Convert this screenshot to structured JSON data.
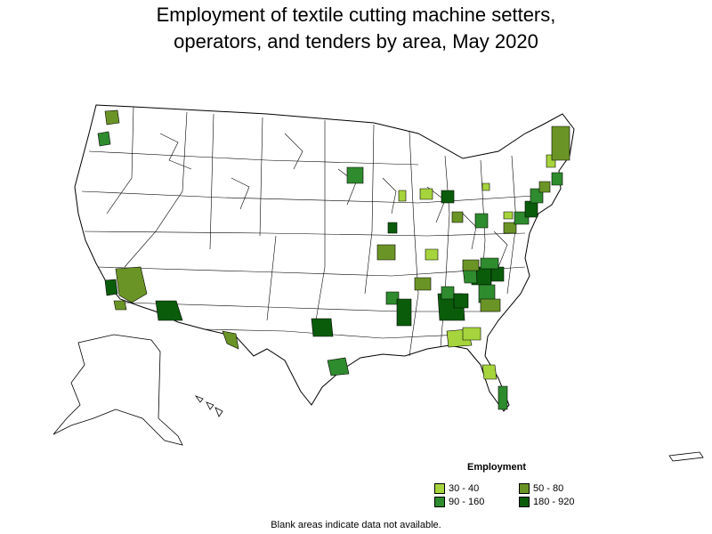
{
  "title": {
    "line1": "Employment of textile cutting machine setters,",
    "line2": "operators, and tenders by area, May 2020"
  },
  "legend": {
    "title": "Employment",
    "items": [
      {
        "label": "30 - 40",
        "color": "#a6d43c"
      },
      {
        "label": "50 - 80",
        "color": "#6b9426"
      },
      {
        "label": "90 - 160",
        "color": "#2e8b2e"
      },
      {
        "label": "180 - 920",
        "color": "#0a5c0a"
      }
    ]
  },
  "note": "Blank areas indicate data not available."
}
